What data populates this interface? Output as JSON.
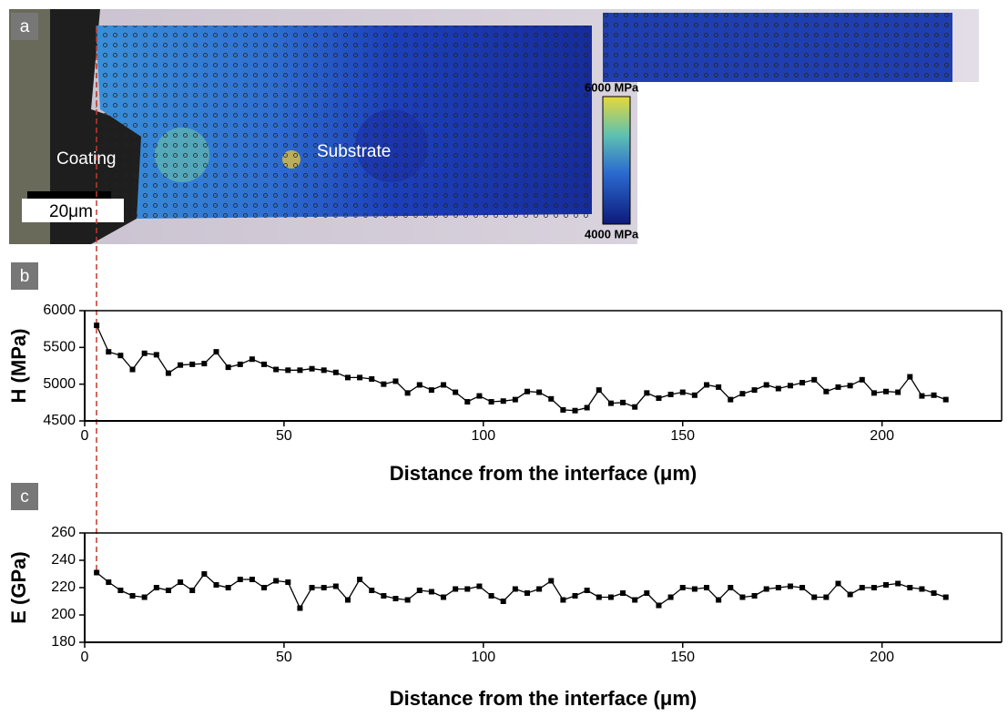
{
  "image": {
    "label": "a",
    "coating": "Coating",
    "substrate": "Substrate",
    "scale_bar": "20μm",
    "colorbar_max": "6000 MPa",
    "colorbar_min": "4000 MPa"
  },
  "chart_data": [
    {
      "type": "line",
      "panel_label": "b",
      "y_label": "H (MPa)",
      "x_label": "Distance from the interface (μm)",
      "color": "#000000",
      "x": [
        3,
        6,
        9,
        12,
        15,
        18,
        21,
        24,
        27,
        30,
        33,
        36,
        39,
        42,
        45,
        48,
        51,
        54,
        57,
        60,
        63,
        66,
        69,
        72,
        75,
        78,
        81,
        84,
        87,
        90,
        93,
        96,
        99,
        102,
        105,
        108,
        111,
        114,
        117,
        120,
        123,
        126,
        129,
        132,
        135,
        138,
        141,
        144,
        147,
        150,
        153,
        156,
        159,
        162,
        165,
        168,
        171,
        174,
        177,
        180,
        183,
        186,
        189,
        192,
        195,
        198,
        201,
        204,
        207,
        210,
        213,
        216
      ],
      "values": [
        5800,
        5440,
        5390,
        5200,
        5420,
        5400,
        5150,
        5260,
        5270,
        5280,
        5440,
        5230,
        5270,
        5340,
        5270,
        5200,
        5190,
        5190,
        5210,
        5190,
        5160,
        5090,
        5090,
        5070,
        5000,
        5040,
        4880,
        4990,
        4920,
        4990,
        4890,
        4760,
        4840,
        4760,
        4770,
        4790,
        4900,
        4890,
        4800,
        4650,
        4640,
        4680,
        4920,
        4740,
        4750,
        4690,
        4880,
        4810,
        4860,
        4890,
        4850,
        4990,
        4960,
        4790,
        4870,
        4920,
        4990,
        4940,
        4980,
        5020,
        5060,
        4900,
        4960,
        4980,
        5060,
        4880,
        4900,
        4890,
        5100,
        4840,
        4850,
        4790
      ],
      "xlim": [
        0,
        230
      ],
      "xticks": [
        0,
        50,
        100,
        150,
        200
      ],
      "ylim": [
        4500,
        6000
      ],
      "yticks": [
        4500,
        5000,
        5500,
        6000
      ]
    },
    {
      "type": "line",
      "panel_label": "c",
      "y_label": "E (GPa)",
      "x_label": "Distance from the interface (μm)",
      "color": "#000000",
      "x": [
        3,
        6,
        9,
        12,
        15,
        18,
        21,
        24,
        27,
        30,
        33,
        36,
        39,
        42,
        45,
        48,
        51,
        54,
        57,
        60,
        63,
        66,
        69,
        72,
        75,
        78,
        81,
        84,
        87,
        90,
        93,
        96,
        99,
        102,
        105,
        108,
        111,
        114,
        117,
        120,
        123,
        126,
        129,
        132,
        135,
        138,
        141,
        144,
        147,
        150,
        153,
        156,
        159,
        162,
        165,
        168,
        171,
        174,
        177,
        180,
        183,
        186,
        189,
        192,
        195,
        198,
        201,
        204,
        207,
        210,
        213,
        216
      ],
      "values": [
        231,
        224,
        218,
        214,
        213,
        220,
        218,
        224,
        218,
        230,
        222,
        220,
        226,
        226,
        220,
        225,
        224,
        205,
        220,
        220,
        221,
        211,
        226,
        218,
        214,
        212,
        211,
        218,
        217,
        213,
        219,
        219,
        221,
        214,
        210,
        219,
        216,
        219,
        225,
        211,
        214,
        218,
        213,
        213,
        216,
        211,
        216,
        207,
        213,
        220,
        219,
        220,
        211,
        220,
        213,
        214,
        219,
        220,
        221,
        220,
        213,
        213,
        223,
        215,
        220,
        220,
        222,
        223,
        220,
        219,
        216,
        213
      ],
      "xlim": [
        0,
        230
      ],
      "xticks": [
        0,
        50,
        100,
        150,
        200
      ],
      "ylim": [
        180,
        260
      ],
      "yticks": [
        180,
        200,
        220,
        240,
        260
      ]
    }
  ]
}
